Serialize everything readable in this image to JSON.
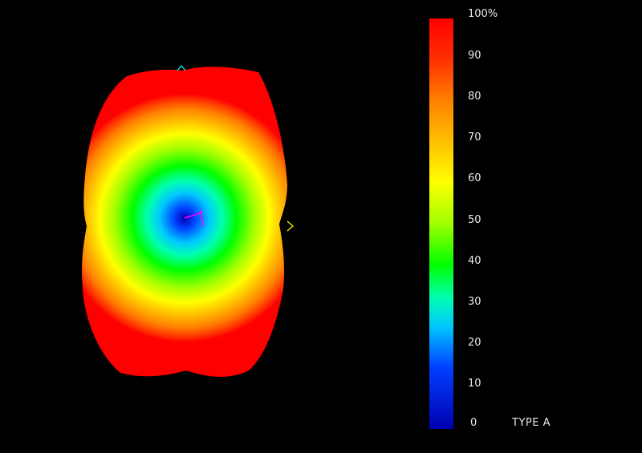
{
  "legend": {
    "title": "TYPE A",
    "tick_labels": [
      "100%",
      "90",
      "80",
      "70",
      "60",
      "50",
      "40",
      "30",
      "20",
      "10",
      "0"
    ],
    "range": [
      0,
      100
    ]
  },
  "colors": {
    "background": "#000000",
    "scale": [
      "#0000b0",
      "#0040ff",
      "#00c8ff",
      "#00ffb0",
      "#00ff00",
      "#a0ff00",
      "#ffff00",
      "#ffc000",
      "#ff8000",
      "#ff3000",
      "#ff0000"
    ],
    "axis_x": "#ff00ff",
    "axis_y": "#ff00ff",
    "axis_marker_top": "#00ffff",
    "axis_marker_right": "#ffff00"
  },
  "icons": {
    "top_marker": "axis-marker-top-icon",
    "right_marker": "axis-marker-right-icon",
    "origin": "origin-axes-icon"
  }
}
